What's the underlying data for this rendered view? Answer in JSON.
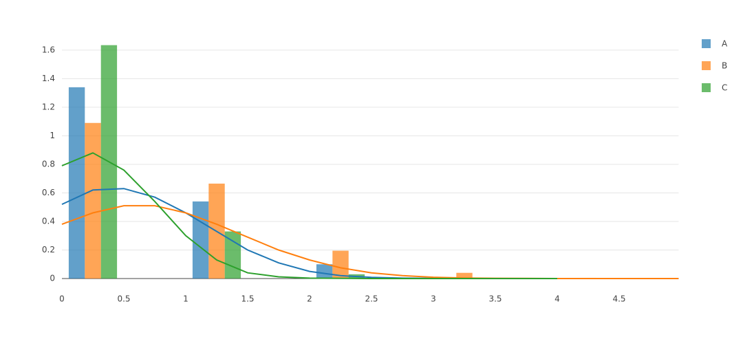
{
  "chart_data": {
    "type": "histogram",
    "bins": [
      0,
      0.5,
      1,
      1.5,
      2,
      2.5,
      3,
      3.5,
      4,
      4.5,
      5
    ],
    "series": [
      {
        "name": "A",
        "color": "#1f77b4",
        "values": [
          1.34,
          0,
          0.54,
          0,
          0.1,
          0,
          0.01,
          0,
          0,
          0
        ],
        "kde_x": [
          0,
          0.25,
          0.5,
          0.75,
          1,
          1.25,
          1.5,
          1.75,
          2,
          2.25,
          2.5,
          2.75,
          3,
          3.25
        ],
        "kde_y": [
          0.52,
          0.62,
          0.63,
          0.57,
          0.46,
          0.33,
          0.2,
          0.11,
          0.05,
          0.02,
          0.008,
          0.003,
          0.001,
          0
        ]
      },
      {
        "name": "B",
        "color": "#ff7f0e",
        "values": [
          1.09,
          0,
          0.665,
          0,
          0.195,
          0,
          0.04,
          0,
          0.005,
          0
        ],
        "kde_x": [
          0,
          0.25,
          0.5,
          0.75,
          1,
          1.25,
          1.5,
          1.75,
          2,
          2.25,
          2.5,
          2.75,
          3,
          3.25,
          3.5,
          3.75,
          4,
          4.5,
          4.98
        ],
        "kde_y": [
          0.38,
          0.46,
          0.51,
          0.51,
          0.46,
          0.38,
          0.29,
          0.2,
          0.13,
          0.075,
          0.04,
          0.02,
          0.009,
          0.004,
          0.002,
          0.001,
          0,
          0,
          0
        ]
      },
      {
        "name": "C",
        "color": "#2ca02c",
        "values": [
          1.635,
          0,
          0.33,
          0,
          0.03,
          0,
          0,
          0,
          0,
          0
        ],
        "kde_x": [
          0,
          0.25,
          0.5,
          0.75,
          1,
          1.25,
          1.5,
          1.75,
          2,
          2.5,
          3,
          3.5,
          4
        ],
        "kde_y": [
          0.79,
          0.88,
          0.76,
          0.54,
          0.3,
          0.13,
          0.04,
          0.012,
          0.003,
          0,
          0,
          0,
          0
        ]
      }
    ],
    "xlim": [
      0,
      4.98
    ],
    "ylim": [
      0,
      1.72
    ],
    "xticks": [
      0,
      0.5,
      1,
      1.5,
      2,
      2.5,
      3,
      3.5,
      4,
      4.5
    ],
    "yticks": [
      0,
      0.2,
      0.4,
      0.6,
      0.8,
      1,
      1.2,
      1.4,
      1.6
    ],
    "grid": true,
    "legend": "right"
  }
}
